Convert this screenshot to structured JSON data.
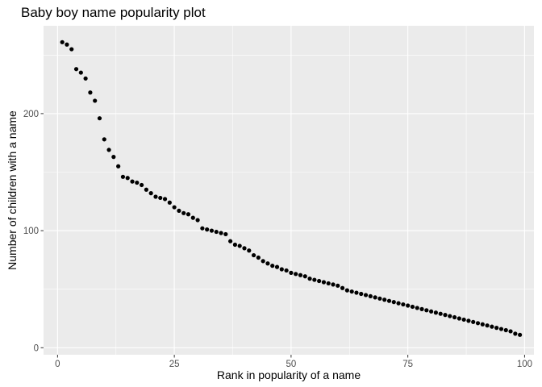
{
  "chart_data": {
    "type": "scatter",
    "title": "Baby boy name popularity plot",
    "xlabel": "Rank in popularity of a name",
    "ylabel": "Number of children with a name",
    "xlim": [
      -3,
      102
    ],
    "ylim": [
      -6,
      275
    ],
    "x_ticks": [
      0,
      25,
      50,
      75,
      100
    ],
    "y_ticks": [
      0,
      100,
      200
    ],
    "x_tick_labels": [
      "0",
      "25",
      "50",
      "75",
      "100"
    ],
    "y_tick_labels": [
      "0",
      "100",
      "200"
    ],
    "grid": true,
    "colors": {
      "panel": "#ebebeb",
      "grid": "#ffffff",
      "point": "#000000",
      "tick": "#4d4d4d"
    },
    "x": [
      1,
      2,
      3,
      4,
      5,
      6,
      7,
      8,
      9,
      10,
      11,
      12,
      13,
      14,
      15,
      16,
      17,
      18,
      19,
      20,
      21,
      22,
      23,
      24,
      25,
      26,
      27,
      28,
      29,
      30,
      31,
      32,
      33,
      34,
      35,
      36,
      37,
      38,
      39,
      40,
      41,
      42,
      43,
      44,
      45,
      46,
      47,
      48,
      49,
      50,
      51,
      52,
      53,
      54,
      55,
      56,
      57,
      58,
      59,
      60,
      61,
      62,
      63,
      64,
      65,
      66,
      67,
      68,
      69,
      70,
      71,
      72,
      73,
      74,
      75,
      76,
      77,
      78,
      79,
      80,
      81,
      82,
      83,
      84,
      85,
      86,
      87,
      88,
      89,
      90,
      91,
      92,
      93,
      94,
      95,
      96,
      97,
      98,
      99
    ],
    "y": [
      261,
      259,
      255,
      238,
      235,
      230,
      218,
      211,
      196,
      178,
      169,
      163,
      155,
      146,
      145,
      142,
      141,
      139,
      135,
      132,
      129,
      128,
      127,
      124,
      120,
      117,
      115,
      114,
      111,
      109,
      102,
      101,
      100,
      99,
      98,
      97,
      91,
      88,
      87,
      85,
      83,
      79,
      77,
      74,
      72,
      70,
      69,
      67,
      66,
      64,
      63,
      62,
      61,
      59,
      58,
      57,
      56,
      55,
      54,
      53,
      51,
      49,
      48,
      47,
      46,
      45,
      44,
      43,
      42,
      41,
      40,
      39,
      38,
      37,
      36,
      35,
      34,
      33,
      32,
      31,
      30,
      29,
      28,
      27,
      26,
      25,
      24,
      23,
      22,
      21,
      20,
      19,
      18,
      17,
      16,
      15,
      14,
      12,
      11
    ]
  }
}
